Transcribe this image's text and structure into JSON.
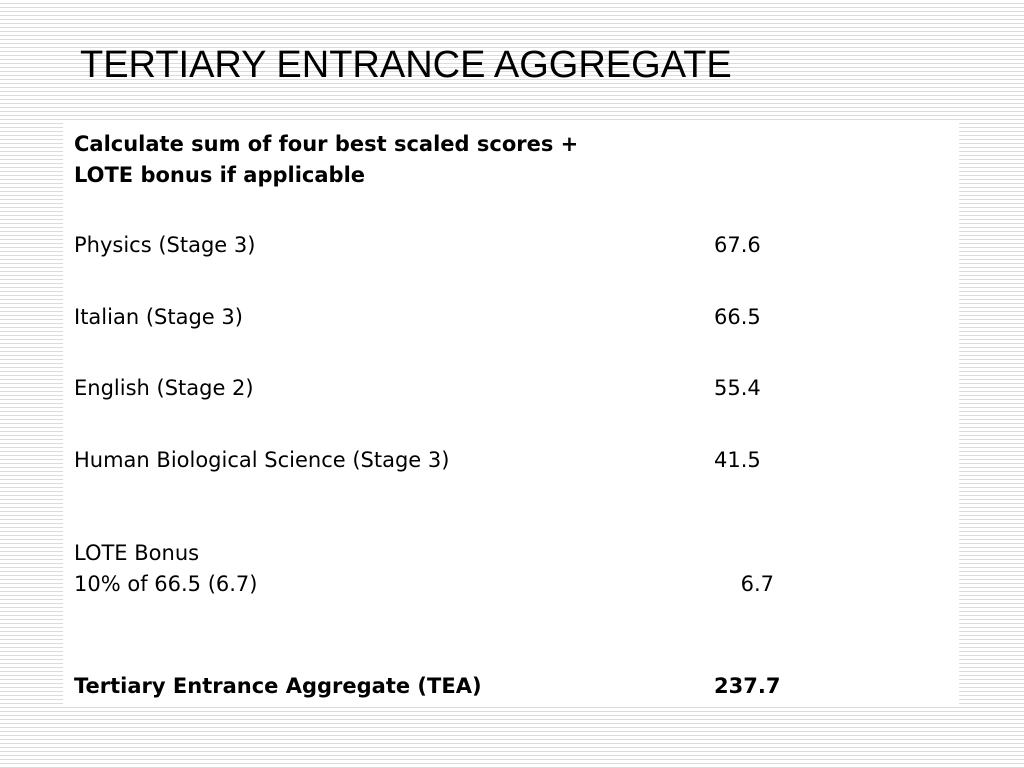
{
  "slide": {
    "title": "TERTIARY ENTRANCE AGGREGATE",
    "heading_line1": "Calculate sum of four best scaled scores +",
    "heading_line2": "LOTE bonus if applicable",
    "subjects": [
      {
        "label": "Physics (Stage 3)",
        "value": "67.6"
      },
      {
        "label": "Italian (Stage 3)",
        "value": "66.5"
      },
      {
        "label": "English (Stage 2)",
        "value": "55.4"
      },
      {
        "label": "Human Biological Science (Stage 3)",
        "value": "41.5"
      }
    ],
    "lote": {
      "title": "LOTE Bonus",
      "detail": "10% of 66.5 (6.7)",
      "value": "6.7"
    },
    "total": {
      "label": "Tertiary Entrance Aggregate (TEA)",
      "value": "237.7"
    }
  }
}
